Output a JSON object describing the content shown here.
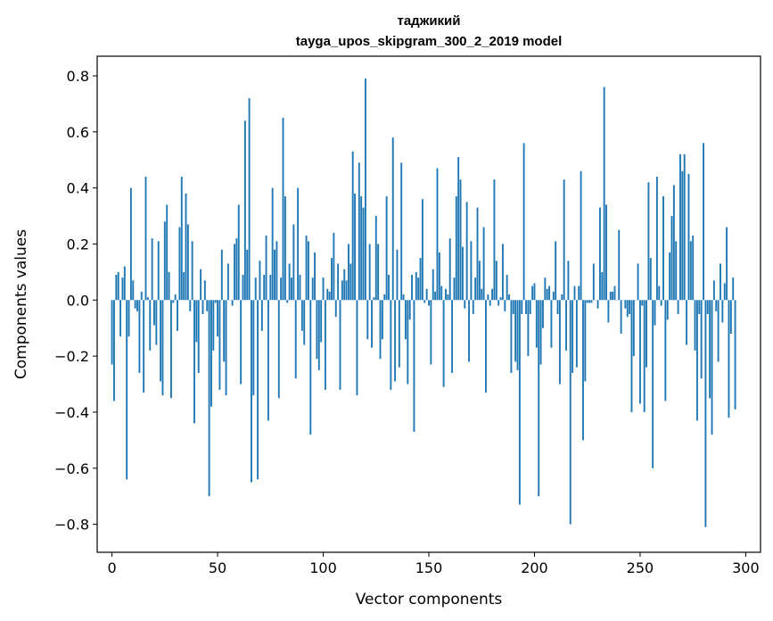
{
  "chart_data": {
    "type": "bar",
    "title_line1": "таджикий",
    "title_line2": "tayga_upos_skipgram_300_2_2019 model",
    "xlabel": "Vector components",
    "ylabel": "Components values",
    "xlim": [
      -7,
      307
    ],
    "ylim": [
      -0.9,
      0.87
    ],
    "xticks": [
      0,
      50,
      100,
      150,
      200,
      250,
      300
    ],
    "xtick_labels": [
      "0",
      "50",
      "100",
      "150",
      "200",
      "250",
      "300"
    ],
    "yticks": [
      -0.8,
      -0.6,
      -0.4,
      -0.2,
      0.0,
      0.2,
      0.4,
      0.6,
      0.8
    ],
    "ytick_labels": [
      "−0.8",
      "−0.6",
      "−0.4",
      "−0.2",
      "0.0",
      "0.2",
      "0.4",
      "0.6",
      "0.8"
    ],
    "bar_color": "#1f77b4",
    "values": [
      -0.23,
      -0.36,
      0.09,
      0.1,
      -0.13,
      0.08,
      0.12,
      -0.64,
      -0.13,
      0.4,
      0.07,
      -0.03,
      -0.04,
      -0.26,
      0.03,
      -0.33,
      0.44,
      0.01,
      -0.18,
      0.22,
      -0.09,
      -0.16,
      0.21,
      -0.29,
      -0.34,
      0.28,
      0.34,
      0.1,
      -0.35,
      -0.01,
      0.02,
      -0.11,
      0.26,
      0.44,
      0.1,
      0.38,
      0.27,
      -0.04,
      0.21,
      -0.44,
      -0.15,
      -0.26,
      0.11,
      -0.05,
      0.07,
      -0.04,
      -0.7,
      -0.38,
      -0.18,
      -0.01,
      -0.13,
      -0.32,
      0.18,
      -0.22,
      -0.34,
      0.13,
      0.0,
      -0.02,
      0.2,
      0.22,
      0.34,
      -0.3,
      0.09,
      0.64,
      0.18,
      0.72,
      -0.65,
      -0.34,
      0.08,
      -0.64,
      0.14,
      -0.11,
      0.09,
      0.23,
      -0.43,
      0.09,
      0.4,
      0.18,
      0.21,
      -0.35,
      0.08,
      0.65,
      0.37,
      -0.01,
      0.13,
      0.08,
      0.27,
      -0.28,
      0.4,
      0.09,
      -0.11,
      -0.16,
      0.23,
      0.21,
      -0.48,
      0.08,
      0.17,
      -0.21,
      -0.25,
      -0.15,
      0.08,
      -0.32,
      0.04,
      0.03,
      0.15,
      0.24,
      -0.06,
      0.13,
      -0.32,
      0.07,
      0.11,
      0.07,
      0.2,
      0.13,
      0.53,
      0.38,
      -0.34,
      0.49,
      0.37,
      0.33,
      0.79,
      -0.14,
      0.2,
      -0.17,
      0.01,
      0.3,
      0.2,
      -0.21,
      -0.14,
      0.02,
      0.37,
      0.09,
      -0.32,
      0.58,
      -0.29,
      0.18,
      -0.24,
      0.49,
      0.02,
      -0.14,
      -0.3,
      -0.07,
      0.09,
      -0.47,
      0.1,
      0.08,
      0.15,
      0.36,
      -0.01,
      0.04,
      -0.02,
      -0.23,
      0.11,
      0.03,
      0.47,
      0.17,
      0.05,
      -0.31,
      0.04,
      0.02,
      0.22,
      -0.26,
      0.08,
      0.37,
      0.51,
      0.43,
      0.19,
      -0.03,
      0.35,
      -0.22,
      0.21,
      -0.05,
      0.08,
      0.33,
      0.14,
      0.04,
      0.26,
      -0.33,
      0.02,
      -0.02,
      0.04,
      0.43,
      0.14,
      -0.02,
      0.01,
      0.2,
      -0.04,
      0.09,
      0.02,
      -0.26,
      -0.05,
      -0.22,
      -0.25,
      -0.73,
      -0.05,
      0.56,
      -0.05,
      -0.2,
      -0.05,
      0.05,
      0.06,
      -0.17,
      -0.7,
      -0.23,
      -0.1,
      0.08,
      0.04,
      0.05,
      -0.17,
      0.03,
      0.21,
      -0.05,
      -0.3,
      0.02,
      0.43,
      -0.18,
      0.14,
      -0.8,
      -0.26,
      0.05,
      -0.24,
      0.05,
      0.46,
      -0.5,
      -0.29,
      -0.01,
      -0.01,
      -0.01,
      0.13,
      0.0,
      -0.03,
      0.33,
      0.1,
      0.76,
      0.34,
      -0.08,
      0.03,
      0.03,
      0.05,
      0.0,
      0.25,
      -0.12,
      0.0,
      -0.03,
      -0.06,
      -0.05,
      -0.4,
      -0.2,
      0.0,
      0.13,
      -0.37,
      -0.02,
      -0.4,
      -0.24,
      0.42,
      0.15,
      -0.6,
      -0.09,
      0.44,
      0.05,
      -0.02,
      0.37,
      -0.36,
      -0.07,
      0.17,
      0.3,
      0.41,
      0.21,
      -0.05,
      0.52,
      0.46,
      0.52,
      -0.16,
      0.45,
      0.21,
      0.23,
      -0.18,
      -0.43,
      -0.05,
      -0.28,
      0.56,
      -0.81,
      -0.05,
      -0.35,
      -0.48,
      0.07,
      -0.04,
      -0.22,
      0.13,
      -0.08,
      0.06,
      0.26,
      -0.42,
      -0.12,
      0.08,
      -0.39
    ]
  }
}
